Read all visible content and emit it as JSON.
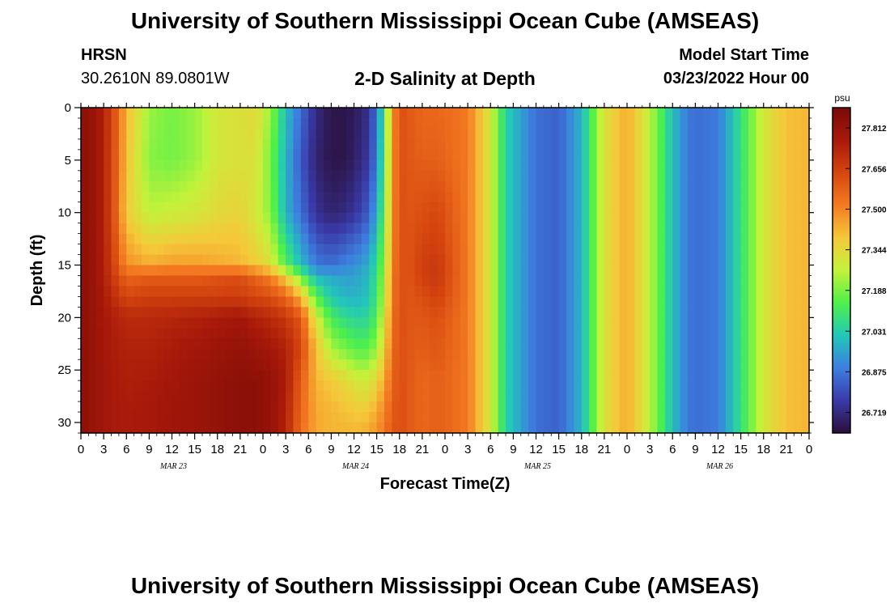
{
  "header": {
    "title": "University of Southern Mississippi Ocean Cube (AMSEAS)",
    "station_name": "HRSN",
    "station_coords": "30.2610N  89.0801W",
    "chart_title": "2-D Salinity at Depth",
    "model_label": "Model Start Time",
    "model_date": "03/23/2022 Hour 00"
  },
  "footer": {
    "title": "University of Southern Mississippi Ocean Cube (AMSEAS)"
  },
  "chart_data": {
    "type": "heatmap",
    "title": "2-D Salinity at Depth",
    "xlabel": "Forecast Time(Z)",
    "ylabel": "Depth (ft)",
    "x_hours_range": [
      0,
      96
    ],
    "ylim": [
      0,
      31
    ],
    "y_inverted": true,
    "x_tick_labels": [
      "0",
      "3",
      "6",
      "9",
      "12",
      "15",
      "18",
      "21",
      "0",
      "3",
      "6",
      "9",
      "12",
      "15",
      "18",
      "21",
      "0",
      "3",
      "6",
      "9",
      "12",
      "15",
      "18",
      "21",
      "0",
      "3",
      "6",
      "9",
      "12",
      "15",
      "18",
      "21",
      "0"
    ],
    "x_tick_hours": [
      0,
      3,
      6,
      9,
      12,
      15,
      18,
      21,
      24,
      27,
      30,
      33,
      36,
      39,
      42,
      45,
      48,
      51,
      54,
      57,
      60,
      63,
      66,
      69,
      72,
      75,
      78,
      81,
      84,
      87,
      90,
      93,
      96
    ],
    "day_labels": [
      {
        "label": "MAR 23",
        "hour": 12
      },
      {
        "label": "MAR 24",
        "hour": 36
      },
      {
        "label": "MAR 25",
        "hour": 60
      },
      {
        "label": "MAR 26",
        "hour": 84
      }
    ],
    "y_ticks": [
      0,
      5,
      10,
      15,
      20,
      25,
      30
    ],
    "y_tick_labels": [
      "0",
      "5",
      "10",
      "15",
      "20",
      "25",
      "30"
    ],
    "colorbar": {
      "unit": "psu",
      "min": 26.64,
      "max": 27.89,
      "tick_values": [
        27.812,
        27.656,
        27.5,
        27.344,
        27.188,
        27.031,
        26.875,
        26.719
      ],
      "tick_labels": [
        "27.812",
        "27.656",
        "27.500",
        "27.344",
        "27.188",
        "27.031",
        "26.875",
        "26.719"
      ],
      "colors": [
        "#2a0f3a",
        "#3a3aa8",
        "#3d7fe0",
        "#22c8b8",
        "#4ef04a",
        "#c4f23a",
        "#f5c83a",
        "#f47a22",
        "#d6460f",
        "#a8190a",
        "#7a0a06"
      ]
    },
    "profile_hour_keys": [
      0,
      2,
      4,
      6,
      9,
      12,
      15,
      18,
      21,
      23,
      25,
      27,
      29,
      31,
      33,
      35,
      37,
      38,
      39,
      40,
      41,
      42,
      43,
      45,
      47,
      51,
      54,
      56,
      60,
      63,
      66,
      69,
      72,
      75,
      78,
      80,
      81,
      84,
      87,
      90,
      93,
      96
    ],
    "profile_depths_ft": [
      0,
      5,
      10,
      15,
      16,
      18,
      20,
      23,
      26,
      29,
      31
    ],
    "profile_values_psu": [
      [
        27.84,
        27.84,
        27.84,
        27.84,
        27.84,
        27.84,
        27.84,
        27.84,
        27.84,
        27.84,
        27.84
      ],
      [
        27.8,
        27.8,
        27.8,
        27.8,
        27.8,
        27.8,
        27.8,
        27.8,
        27.8,
        27.8,
        27.8
      ],
      [
        27.66,
        27.66,
        27.66,
        27.68,
        27.69,
        27.72,
        27.75,
        27.76,
        27.77,
        27.77,
        27.77
      ],
      [
        27.42,
        27.4,
        27.38,
        27.48,
        27.56,
        27.64,
        27.72,
        27.74,
        27.75,
        27.76,
        27.76
      ],
      [
        27.22,
        27.2,
        27.26,
        27.44,
        27.58,
        27.66,
        27.72,
        27.74,
        27.76,
        27.77,
        27.77
      ],
      [
        27.18,
        27.18,
        27.28,
        27.46,
        27.58,
        27.66,
        27.73,
        27.76,
        27.78,
        27.79,
        27.79
      ],
      [
        27.22,
        27.22,
        27.3,
        27.46,
        27.58,
        27.66,
        27.74,
        27.78,
        27.8,
        27.8,
        27.8
      ],
      [
        27.3,
        27.3,
        27.34,
        27.44,
        27.6,
        27.66,
        27.76,
        27.8,
        27.82,
        27.82,
        27.82
      ],
      [
        27.32,
        27.32,
        27.36,
        27.42,
        27.62,
        27.66,
        27.78,
        27.82,
        27.84,
        27.84,
        27.84
      ],
      [
        27.34,
        27.32,
        27.3,
        27.38,
        27.56,
        27.64,
        27.74,
        27.8,
        27.84,
        27.84,
        27.84
      ],
      [
        27.22,
        27.18,
        27.2,
        27.32,
        27.5,
        27.62,
        27.72,
        27.78,
        27.82,
        27.82,
        27.82
      ],
      [
        27.0,
        26.98,
        26.98,
        27.14,
        27.36,
        27.56,
        27.68,
        27.74,
        27.76,
        27.74,
        27.74
      ],
      [
        26.86,
        26.82,
        26.86,
        27.0,
        27.16,
        27.42,
        27.6,
        27.64,
        27.58,
        27.56,
        27.54
      ],
      [
        26.72,
        26.7,
        26.74,
        26.88,
        26.98,
        27.14,
        27.3,
        27.4,
        27.42,
        27.44,
        27.44
      ],
      [
        26.66,
        26.66,
        26.7,
        26.86,
        26.96,
        27.02,
        27.12,
        27.24,
        27.38,
        27.42,
        27.42
      ],
      [
        26.66,
        26.66,
        26.72,
        26.9,
        26.94,
        26.98,
        27.06,
        27.18,
        27.34,
        27.4,
        27.42
      ],
      [
        26.7,
        26.72,
        26.78,
        26.94,
        26.96,
        26.98,
        27.04,
        27.14,
        27.28,
        27.38,
        27.42
      ],
      [
        26.74,
        26.76,
        26.84,
        26.98,
        27.0,
        27.02,
        27.06,
        27.16,
        27.3,
        27.4,
        27.44
      ],
      [
        26.88,
        26.9,
        26.96,
        27.06,
        27.08,
        27.1,
        27.14,
        27.22,
        27.36,
        27.44,
        27.48
      ],
      [
        27.1,
        27.12,
        27.16,
        27.22,
        27.24,
        27.26,
        27.3,
        27.36,
        27.44,
        27.5,
        27.52
      ],
      [
        27.44,
        27.44,
        27.46,
        27.48,
        27.5,
        27.5,
        27.52,
        27.54,
        27.56,
        27.58,
        27.6
      ],
      [
        27.62,
        27.62,
        27.62,
        27.62,
        27.62,
        27.62,
        27.62,
        27.62,
        27.62,
        27.62,
        27.62
      ],
      [
        27.6,
        27.6,
        27.6,
        27.6,
        27.6,
        27.6,
        27.6,
        27.6,
        27.6,
        27.6,
        27.6
      ],
      [
        27.56,
        27.58,
        27.62,
        27.66,
        27.66,
        27.62,
        27.6,
        27.58,
        27.56,
        27.56,
        27.56
      ],
      [
        27.56,
        27.58,
        27.64,
        27.68,
        27.68,
        27.66,
        27.62,
        27.6,
        27.58,
        27.58,
        27.58
      ],
      [
        27.52,
        27.52,
        27.52,
        27.52,
        27.52,
        27.52,
        27.52,
        27.52,
        27.52,
        27.52,
        27.52
      ],
      [
        27.3,
        27.3,
        27.3,
        27.3,
        27.3,
        27.3,
        27.3,
        27.3,
        27.3,
        27.3,
        27.3
      ],
      [
        27.04,
        27.04,
        27.04,
        27.04,
        27.04,
        27.04,
        27.04,
        27.04,
        27.04,
        27.04,
        27.04
      ],
      [
        26.86,
        26.86,
        26.86,
        26.86,
        26.86,
        26.86,
        26.86,
        26.86,
        26.86,
        26.86,
        26.86
      ],
      [
        26.84,
        26.84,
        26.84,
        26.84,
        26.84,
        26.84,
        26.84,
        26.84,
        26.84,
        26.84,
        26.84
      ],
      [
        26.98,
        26.98,
        26.98,
        26.98,
        26.98,
        26.98,
        26.98,
        26.98,
        26.98,
        26.98,
        26.98
      ],
      [
        27.32,
        27.32,
        27.32,
        27.32,
        27.32,
        27.32,
        27.32,
        27.32,
        27.32,
        27.32,
        27.32
      ],
      [
        27.44,
        27.44,
        27.44,
        27.44,
        27.44,
        27.44,
        27.44,
        27.44,
        27.44,
        27.44,
        27.44
      ],
      [
        27.26,
        27.26,
        27.26,
        27.26,
        27.26,
        27.26,
        27.26,
        27.26,
        27.26,
        27.26,
        27.26
      ],
      [
        27.0,
        27.0,
        27.0,
        27.0,
        27.0,
        27.0,
        27.0,
        27.0,
        27.0,
        27.0,
        27.0
      ],
      [
        26.88,
        26.88,
        26.88,
        26.88,
        26.88,
        26.88,
        26.88,
        26.88,
        26.88,
        26.88,
        26.88
      ],
      [
        26.86,
        26.86,
        26.86,
        26.86,
        26.86,
        26.86,
        26.86,
        26.86,
        26.86,
        26.86,
        26.86
      ],
      [
        26.88,
        26.88,
        26.88,
        26.88,
        26.88,
        26.88,
        26.88,
        26.88,
        26.88,
        26.88,
        26.88
      ],
      [
        27.08,
        27.08,
        27.08,
        27.08,
        27.08,
        27.08,
        27.08,
        27.08,
        27.08,
        27.08,
        27.08
      ],
      [
        27.3,
        27.3,
        27.3,
        27.3,
        27.3,
        27.3,
        27.3,
        27.3,
        27.3,
        27.3,
        27.3
      ],
      [
        27.4,
        27.4,
        27.4,
        27.4,
        27.4,
        27.4,
        27.4,
        27.4,
        27.4,
        27.4,
        27.4
      ],
      [
        27.42,
        27.42,
        27.42,
        27.42,
        27.42,
        27.42,
        27.42,
        27.42,
        27.42,
        27.42,
        27.42
      ]
    ]
  }
}
